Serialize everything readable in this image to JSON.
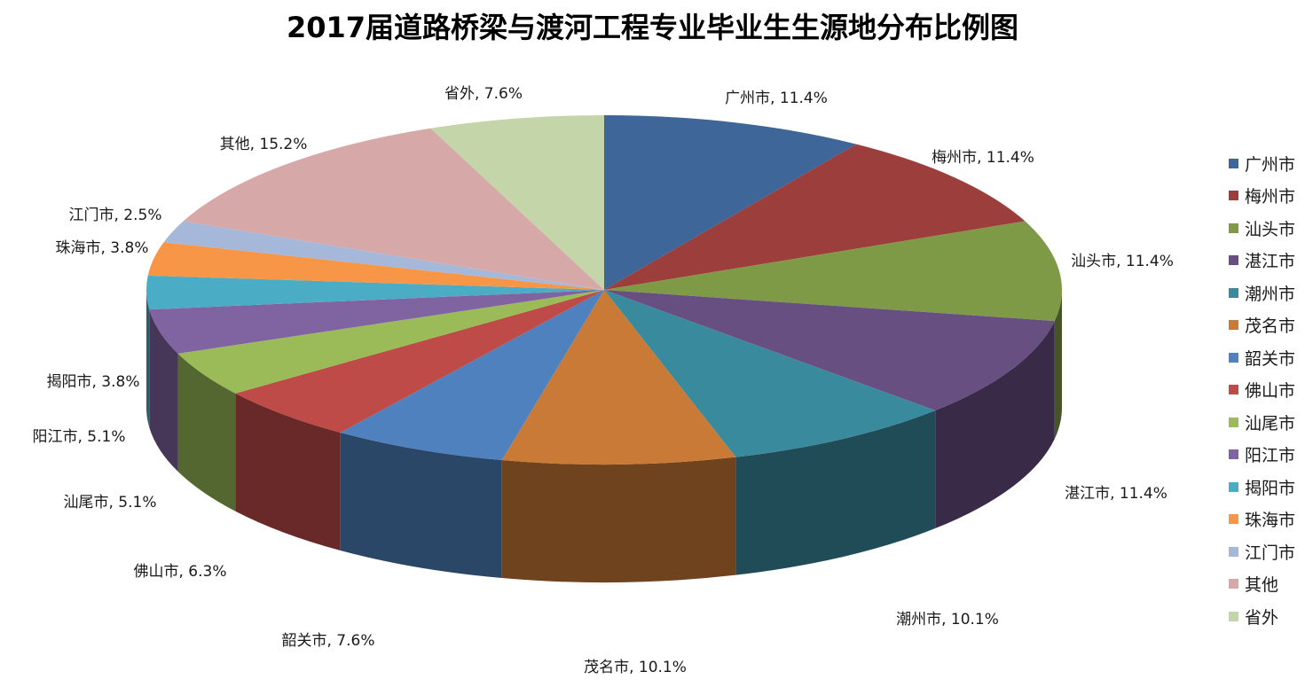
{
  "chart_data": {
    "type": "pie",
    "title": "2017届道路桥梁与渡河工程专业毕业生生源地分布比例图",
    "slices": [
      {
        "name": "广州市",
        "value": 11.4,
        "label": "11.4%",
        "color": "#3E6699"
      },
      {
        "name": "梅州市",
        "value": 11.4,
        "label": "11.4%",
        "color": "#9C3E3B"
      },
      {
        "name": "汕头市",
        "value": 11.4,
        "label": "11.4%",
        "color": "#7F9A46"
      },
      {
        "name": "湛江市",
        "value": 11.4,
        "label": "11.4%",
        "color": "#684F82"
      },
      {
        "name": "潮州市",
        "value": 10.1,
        "label": "10.1%",
        "color": "#3A8A9E"
      },
      {
        "name": "茂名市",
        "value": 10.1,
        "label": "10.1%",
        "color": "#C97A36"
      },
      {
        "name": "韶关市",
        "value": 7.6,
        "label": "7.6%",
        "color": "#4E81BD"
      },
      {
        "name": "佛山市",
        "value": 6.3,
        "label": "6.3%",
        "color": "#BE4B48"
      },
      {
        "name": "汕尾市",
        "value": 5.1,
        "label": "5.1%",
        "color": "#9BBB59"
      },
      {
        "name": "阳江市",
        "value": 5.1,
        "label": "5.1%",
        "color": "#8064A2"
      },
      {
        "name": "揭阳市",
        "value": 3.8,
        "label": "3.8%",
        "color": "#4BACC6"
      },
      {
        "name": "珠海市",
        "value": 3.8,
        "label": "3.8%",
        "color": "#F79646"
      },
      {
        "name": "江门市",
        "value": 2.5,
        "label": "2.5%",
        "color": "#A5B8DA"
      },
      {
        "name": "其他",
        "value": 15.2,
        "label": "15.2%",
        "color": "#D6A8A7"
      },
      {
        "name": "省外",
        "value": 7.6,
        "label": "7.6%",
        "color": "#C4D5AA"
      }
    ],
    "legend_position": "right",
    "view": "3d"
  }
}
